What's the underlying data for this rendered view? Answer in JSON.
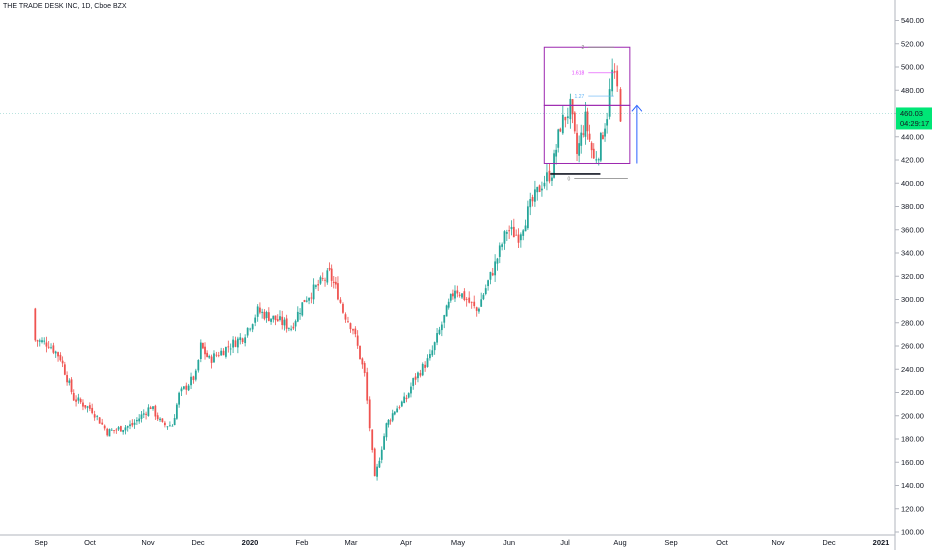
{
  "header": {
    "title": "THE TRADE DESK INC, 1D, Cboe BZX"
  },
  "price_label": {
    "value": "460.03",
    "countdown": "04:29:17"
  },
  "fib_labels": {
    "top": "2",
    "f1618": "1.618",
    "f127": "1.27",
    "zero": "0"
  },
  "colors": {
    "up": "#26a69a",
    "down": "#ef5350",
    "box": "#9c27b0",
    "arrow": "#2962ff",
    "label_bg": "#00e676"
  },
  "chart_data": {
    "type": "candlestick",
    "title": "THE TRADE DESK INC, 1D, Cboe BZX",
    "ylim": [
      100,
      545
    ],
    "yticks": [
      100,
      120,
      140,
      160,
      180,
      200,
      220,
      240,
      260,
      280,
      300,
      320,
      340,
      360,
      380,
      400,
      420,
      440,
      460,
      480,
      500,
      520,
      540
    ],
    "xticks": [
      "Sep",
      "Oct",
      "Nov",
      "Dec",
      "2020",
      "Feb",
      "Mar",
      "Apr",
      "May",
      "Jun",
      "Jul",
      "Aug",
      "Sep",
      "Oct",
      "Nov",
      "Dec",
      "2021"
    ],
    "last_price": 460.03,
    "anchors": [
      [
        "2019-08-26",
        292
      ],
      [
        "2019-08-28",
        265
      ],
      [
        "2019-09-05",
        262
      ],
      [
        "2019-09-12",
        250
      ],
      [
        "2019-09-20",
        215
      ],
      [
        "2019-10-01",
        205
      ],
      [
        "2019-10-10",
        186
      ],
      [
        "2019-10-25",
        192
      ],
      [
        "2019-11-05",
        208
      ],
      [
        "2019-11-12",
        192
      ],
      [
        "2019-11-18",
        192
      ],
      [
        "2019-11-22",
        218
      ],
      [
        "2019-12-02",
        235
      ],
      [
        "2019-12-05",
        260
      ],
      [
        "2019-12-10",
        248
      ],
      [
        "2019-12-20",
        258
      ],
      [
        "2019-12-30",
        268
      ],
      [
        "2020-01-08",
        290
      ],
      [
        "2020-01-20",
        282
      ],
      [
        "2020-01-28",
        276
      ],
      [
        "2020-02-05",
        300
      ],
      [
        "2020-02-20",
        322
      ],
      [
        "2020-02-25",
        305
      ],
      [
        "2020-02-28",
        290
      ],
      [
        "2020-03-05",
        275
      ],
      [
        "2020-03-12",
        235
      ],
      [
        "2020-03-18",
        145
      ],
      [
        "2020-03-25",
        192
      ],
      [
        "2020-03-30",
        205
      ],
      [
        "2020-04-06",
        215
      ],
      [
        "2020-04-10",
        230
      ],
      [
        "2020-04-20",
        250
      ],
      [
        "2020-04-30",
        290
      ],
      [
        "2020-05-05",
        310
      ],
      [
        "2020-05-12",
        300
      ],
      [
        "2020-05-18",
        290
      ],
      [
        "2020-05-22",
        305
      ],
      [
        "2020-05-29",
        330
      ],
      [
        "2020-06-05",
        360
      ],
      [
        "2020-06-12",
        355
      ],
      [
        "2020-06-19",
        380
      ],
      [
        "2020-06-26",
        400
      ],
      [
        "2020-07-02",
        410
      ],
      [
        "2020-07-07",
        450
      ],
      [
        "2020-07-13",
        465
      ],
      [
        "2020-07-17",
        425
      ],
      [
        "2020-07-22",
        455
      ],
      [
        "2020-07-27",
        420
      ],
      [
        "2020-07-30",
        428
      ],
      [
        "2020-08-04",
        460
      ],
      [
        "2020-08-07",
        495
      ],
      [
        "2020-08-10",
        480
      ],
      [
        "2020-08-12",
        460
      ]
    ],
    "annotations": {
      "fib_levels": [
        {
          "label": "2",
          "value": 517
        },
        {
          "label": "1.618",
          "value": 495
        },
        {
          "label": "1.27",
          "value": 475
        },
        {
          "label": "0",
          "value": 404
        }
      ],
      "boxes": [
        {
          "from": "2020-07-01",
          "to": "2020-08-14",
          "low": 467,
          "high": 517
        },
        {
          "from": "2020-07-01",
          "to": "2020-08-14",
          "low": 417,
          "high": 467
        }
      ],
      "support_line": {
        "from": "2020-07-01",
        "to": "2020-07-31",
        "value": 408
      },
      "arrow": {
        "date": "2020-08-17",
        "from": 417,
        "to": 467
      }
    }
  }
}
